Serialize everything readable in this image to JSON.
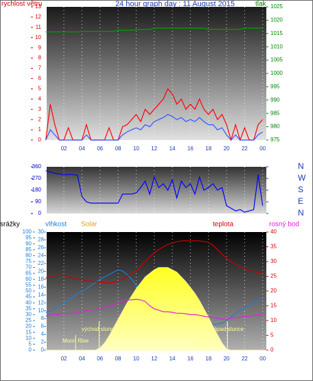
{
  "chart_data": [
    {
      "type": "line",
      "title": "24 hour graph day : 11 August 2015",
      "ylabel": "rychlost větru",
      "y2label": "tlak",
      "x": [
        0,
        0.5,
        1,
        1.5,
        2,
        2.5,
        3,
        3.5,
        4,
        4.5,
        5,
        5.5,
        6,
        6.5,
        7,
        7.5,
        8,
        8.5,
        9,
        9.5,
        10,
        10.5,
        11,
        11.5,
        12,
        12.5,
        13,
        13.5,
        14,
        14.5,
        15,
        15.5,
        16,
        16.5,
        17,
        17.5,
        18,
        18.5,
        19,
        19.5,
        20,
        20.5,
        21,
        21.5,
        22,
        22.5,
        23,
        23.5,
        24
      ],
      "xlim": [
        0.1,
        24.4
      ],
      "xticks": [
        {
          "value": 2,
          "label": "02"
        },
        {
          "value": 4,
          "label": "04"
        },
        {
          "value": 6,
          "label": "06"
        },
        {
          "value": 8,
          "label": "08"
        },
        10,
        12,
        14,
        16,
        18,
        20,
        22,
        {
          "value": 24,
          "label": "00"
        }
      ],
      "ylim": [
        0,
        13
      ],
      "yticks": [
        0,
        1,
        2,
        3,
        4,
        5,
        6,
        7,
        8,
        9,
        10,
        11,
        12,
        13
      ],
      "y2lim": [
        975,
        1025
      ],
      "y2ticks": [
        975,
        980,
        985,
        990,
        995,
        1000,
        1005,
        1010,
        1015,
        1020,
        1025
      ],
      "series": [
        {
          "color": "#ff0000",
          "values": [
            0,
            3.5,
            1.5,
            0,
            0,
            1.2,
            0,
            0,
            0,
            1.5,
            0,
            0,
            0,
            0,
            1.2,
            0,
            0,
            1.3,
            1.5,
            2,
            2.5,
            1.8,
            3,
            2.5,
            3,
            3.5,
            4,
            5,
            4.5,
            3.5,
            4,
            3,
            3.5,
            3,
            4,
            3,
            2.5,
            3,
            2,
            2.5,
            1.5,
            0,
            1.5,
            0,
            1.2,
            0,
            0,
            1.5,
            2
          ]
        },
        {
          "color": "#3355ff",
          "values": [
            0,
            1,
            0.5,
            0,
            0,
            0,
            0,
            0,
            0,
            0.5,
            0,
            0,
            0,
            0,
            0,
            0,
            0,
            0.5,
            0.8,
            1,
            1.2,
            1,
            1.5,
            1.3,
            1.8,
            2,
            2.2,
            2.5,
            2.3,
            2,
            2.2,
            1.8,
            2,
            1.8,
            2.2,
            1.8,
            1.5,
            1.5,
            1,
            1.2,
            0.5,
            0,
            0.5,
            0,
            0,
            0,
            0,
            0.5,
            0.8
          ]
        },
        {
          "color": "#00a000",
          "axis": "y2",
          "values": [
            1015.6,
            1015.6,
            1015.6,
            1015.6,
            1015.6,
            1015.6,
            1015.6,
            1015.6,
            1015.8,
            1015.8,
            1015.8,
            1015.8,
            1015.8,
            1015.8,
            1015.8,
            1015.8,
            1016.2,
            1016.2,
            1016.2,
            1016.2,
            1016.5,
            1016.5,
            1016.5,
            1016.5,
            1017,
            1017,
            1017,
            1017,
            1017,
            1017,
            1017,
            1017,
            1017,
            1017,
            1017,
            1017,
            1016.6,
            1016.6,
            1016.6,
            1016.6,
            1016.6,
            1016.6,
            1016.6,
            1016.6,
            1017,
            1017,
            1017,
            1017,
            1017
          ]
        }
      ]
    },
    {
      "type": "line",
      "x": [
        0,
        0.5,
        1,
        1.5,
        2,
        2.5,
        3,
        3.5,
        4,
        4.5,
        5,
        5.5,
        6,
        6.5,
        7,
        7.5,
        8,
        8.5,
        9,
        9.5,
        10,
        10.5,
        11,
        11.5,
        12,
        12.5,
        13,
        13.5,
        14,
        14.5,
        15,
        15.5,
        16,
        16.5,
        17,
        17.5,
        18,
        18.5,
        19,
        19.5,
        20,
        20.5,
        21,
        21.5,
        22,
        22.5,
        23,
        23.5,
        24
      ],
      "xlim": [
        0.1,
        24.4
      ],
      "ylim": [
        0,
        360
      ],
      "yticks": [
        0,
        90,
        180,
        270,
        360
      ],
      "y2lim": [
        0,
        360
      ],
      "y2ticks": [
        {
          "value": 0,
          "label": "N"
        },
        {
          "value": 90,
          "label": "E"
        },
        {
          "value": 180,
          "label": "S"
        },
        {
          "value": 270,
          "label": "W"
        },
        {
          "value": 360,
          "label": "N"
        }
      ],
      "series": [
        {
          "color": "#0000ff",
          "values": [
            330,
            320,
            310,
            305,
            300,
            300,
            300,
            295,
            130,
            90,
            80,
            80,
            80,
            80,
            80,
            80,
            80,
            150,
            150,
            150,
            160,
            200,
            250,
            150,
            280,
            200,
            230,
            180,
            260,
            120,
            250,
            200,
            230,
            150,
            280,
            180,
            200,
            230,
            180,
            200,
            60,
            40,
            20,
            30,
            10,
            20,
            30,
            300,
            60
          ]
        }
      ]
    },
    {
      "type": "line",
      "ylabel": "srážky",
      "x": [
        0,
        0.5,
        1,
        1.5,
        2,
        2.5,
        3,
        3.5,
        4,
        4.5,
        5,
        5.5,
        6,
        6.5,
        7,
        7.5,
        8,
        8.5,
        9,
        9.5,
        10,
        10.5,
        11,
        11.5,
        12,
        12.5,
        13,
        13.5,
        14,
        14.5,
        15,
        15.5,
        16,
        16.5,
        17,
        17.5,
        18,
        18.5,
        19,
        19.5,
        20,
        20.5,
        21,
        21.5,
        22,
        22.5,
        23,
        23.5,
        24
      ],
      "xlim": [
        0.1,
        24.4
      ],
      "xticks": [
        {
          "value": 2,
          "label": "02"
        },
        {
          "value": 4,
          "label": "04"
        },
        {
          "value": 6,
          "label": "06"
        },
        {
          "value": 8,
          "label": "08"
        },
        10,
        12,
        14,
        16,
        18,
        20,
        22,
        {
          "value": 24,
          "label": "00"
        }
      ],
      "ylim": [
        0,
        100
      ],
      "yticks": [
        0,
        5,
        10,
        15,
        20,
        25,
        30,
        35,
        40,
        45,
        50,
        55,
        60,
        65,
        70,
        75,
        80,
        85,
        90,
        95,
        100
      ],
      "y3lim": [
        0,
        30
      ],
      "y3ticks": [
        0,
        2,
        4,
        6,
        8,
        10,
        12,
        14,
        16,
        18,
        20,
        22,
        24,
        26,
        28,
        30
      ],
      "y2lim": [
        0,
        40
      ],
      "y2ticks": [
        0,
        5,
        10,
        15,
        20,
        25,
        30,
        35,
        40
      ],
      "series": [
        {
          "name": "vlhkost",
          "color": "#1e7fd8",
          "values": [
            32,
            33,
            35,
            38,
            40,
            42,
            45,
            48,
            50,
            52,
            55,
            57,
            60,
            62,
            64,
            66,
            68,
            67,
            64,
            60,
            55,
            48,
            42,
            36,
            32,
            29,
            27,
            26,
            25,
            24,
            24,
            23,
            23,
            23,
            22,
            22,
            22,
            22,
            22,
            23,
            25,
            28,
            31,
            34,
            36,
            38,
            40,
            42,
            44
          ]
        },
        {
          "name": "Solar",
          "color": "#d9a520",
          "fill": "#ffff33",
          "values": [
            0,
            0,
            0,
            0,
            0,
            0,
            0,
            0,
            0,
            0,
            0,
            0,
            2,
            6,
            12,
            19,
            26,
            33,
            40,
            46,
            52,
            57,
            62,
            65,
            68,
            70,
            70,
            70,
            68,
            66,
            62,
            58,
            53,
            48,
            42,
            35,
            28,
            20,
            13,
            6,
            1,
            0,
            0,
            0,
            0,
            0,
            0,
            0,
            0
          ]
        },
        {
          "name": "teplota",
          "color": "#d00000",
          "axis": "y2",
          "values": [
            24.4,
            24.8,
            25.2,
            25.4,
            25.2,
            24.8,
            24.4,
            24,
            23.8,
            23.6,
            23.4,
            23.2,
            23,
            22.8,
            22.8,
            23,
            23.2,
            24,
            25,
            26,
            27,
            28.5,
            30,
            31.5,
            33,
            34,
            35,
            35.8,
            36.3,
            36.7,
            37,
            37,
            37,
            37,
            37,
            36.8,
            36.5,
            35.5,
            34,
            32.5,
            31,
            30,
            29,
            28.2,
            27.5,
            27,
            26.6,
            26.3,
            26
          ]
        },
        {
          "name": "rosný bod",
          "color": "#e020e0",
          "axis": "y2",
          "values": [
            11.5,
            12,
            12.2,
            12.2,
            12.3,
            12.4,
            12.5,
            12.8,
            13,
            13.3,
            13.5,
            13.8,
            14,
            14.5,
            15,
            15.5,
            16,
            16.5,
            17,
            17,
            17.2,
            17,
            16.5,
            15,
            14,
            13.5,
            13,
            13,
            12.8,
            12.5,
            12.5,
            12.3,
            12,
            12,
            11.8,
            11.5,
            11.2,
            11,
            10.8,
            10.5,
            10.5,
            10.8,
            11,
            11.2,
            11.5,
            11.5,
            11.8,
            12,
            12
          ]
        }
      ],
      "annotations": [
        {
          "text": "Moon Rise",
          "x": 3.3
        },
        {
          "text": "východ slunce",
          "x": 5.9
        },
        {
          "text": "Moon Set",
          "x": 17.6
        },
        {
          "text": "západ slunce",
          "x": 20.1
        }
      ]
    }
  ]
}
